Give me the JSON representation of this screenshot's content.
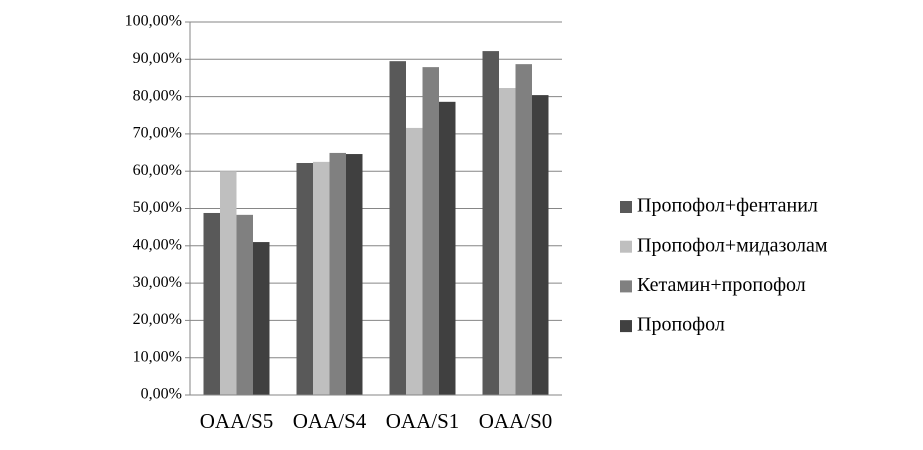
{
  "chart_data": {
    "type": "bar",
    "categories": [
      "OAA/S5",
      "OAA/S4",
      "OAA/S1",
      "OAA/S0"
    ],
    "series": [
      {
        "name": "Пропофол+фентанил",
        "color": "#595959",
        "values": [
          48.8,
          62.2,
          89.5,
          92.2
        ]
      },
      {
        "name": "Пропофол+мидазолам",
        "color": "#bfbfbf",
        "values": [
          60.0,
          62.5,
          71.6,
          82.3
        ]
      },
      {
        "name": "Кетамин+пропофол",
        "color": "#808080",
        "values": [
          48.3,
          64.9,
          87.9,
          88.7
        ]
      },
      {
        "name": "Пропофол",
        "color": "#404040",
        "values": [
          41.0,
          64.6,
          78.6,
          80.4
        ]
      }
    ],
    "ylim": [
      0,
      100
    ],
    "yticks": [
      {
        "value": 0,
        "label": "0,00%"
      },
      {
        "value": 10,
        "label": "10,00%"
      },
      {
        "value": 20,
        "label": "20,00%"
      },
      {
        "value": 30,
        "label": "30,00%"
      },
      {
        "value": 40,
        "label": "40,00%"
      },
      {
        "value": 50,
        "label": "50,00%"
      },
      {
        "value": 60,
        "label": "60,00%"
      },
      {
        "value": 70,
        "label": "70,00%"
      },
      {
        "value": 80,
        "label": "80,00%"
      },
      {
        "value": 90,
        "label": "90,00%"
      },
      {
        "value": 100,
        "label": "100,00%"
      }
    ],
    "grid": true,
    "legend": "right"
  }
}
